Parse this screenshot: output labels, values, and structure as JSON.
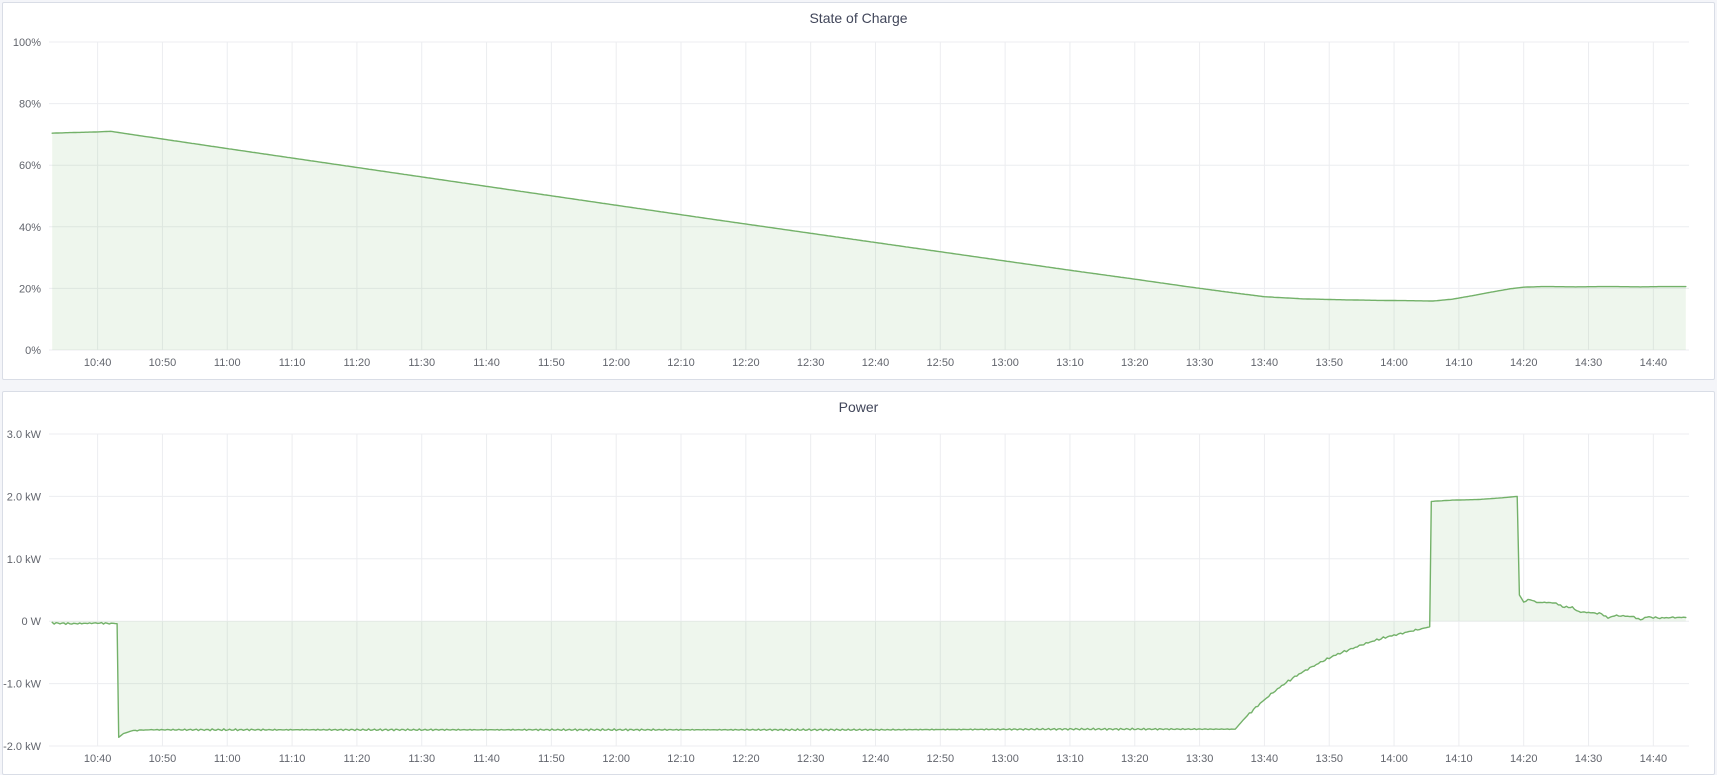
{
  "page": {
    "background": "#f4f5f9"
  },
  "panels": [
    {
      "title": "State of Charge"
    },
    {
      "title": "Power"
    }
  ],
  "colors": {
    "series_line": "#73b169",
    "series_fill": "rgba(115,177,105,0.12)",
    "grid": "#ecedf0",
    "axis_text": "#62656d",
    "panel_title": "#41465a",
    "panel_border": "#d9dde6",
    "panel_bg": "#ffffff",
    "page_bg": "#f4f5f9"
  },
  "chart_data": [
    {
      "type": "area",
      "title": "State of Charge",
      "xlabel": "",
      "ylabel": "",
      "ylim": [
        0,
        100
      ],
      "x_range": [
        "10:32:30",
        "14:45:30"
      ],
      "grid": true,
      "legend": "none",
      "x_ticks": [
        "10:40",
        "10:50",
        "11:00",
        "11:10",
        "11:20",
        "11:30",
        "11:40",
        "11:50",
        "12:00",
        "12:10",
        "12:20",
        "12:30",
        "12:40",
        "12:50",
        "13:00",
        "13:10",
        "13:20",
        "13:30",
        "13:40",
        "13:50",
        "14:00",
        "14:10",
        "14:20",
        "14:30",
        "14:40"
      ],
      "y_ticks": [
        {
          "v": 100,
          "label": "100%"
        },
        {
          "v": 80,
          "label": "80%"
        },
        {
          "v": 60,
          "label": "60%"
        },
        {
          "v": 40,
          "label": "40%"
        },
        {
          "v": 20,
          "label": "20%"
        },
        {
          "v": 0,
          "label": "0%"
        }
      ],
      "series": [
        {
          "name": "State of Charge",
          "unit": "%",
          "points": [
            [
              "10:33",
              70.4
            ],
            [
              "10:36",
              70.6
            ],
            [
              "10:40",
              70.8
            ],
            [
              "10:42",
              71.0
            ],
            [
              "10:50",
              68.5
            ],
            [
              "11:00",
              65.4
            ],
            [
              "11:15",
              60.8
            ],
            [
              "11:30",
              56.2
            ],
            [
              "11:45",
              51.6
            ],
            [
              "12:00",
              47.0
            ],
            [
              "12:15",
              42.4
            ],
            [
              "12:30",
              37.9
            ],
            [
              "12:45",
              33.4
            ],
            [
              "13:00",
              28.9
            ],
            [
              "13:10",
              25.9
            ],
            [
              "13:20",
              23.0
            ],
            [
              "13:28",
              20.6
            ],
            [
              "13:34",
              18.9
            ],
            [
              "13:40",
              17.3
            ],
            [
              "13:46",
              16.6
            ],
            [
              "13:52",
              16.3
            ],
            [
              "13:58",
              16.1
            ],
            [
              "14:03",
              16.0
            ],
            [
              "14:06",
              15.9
            ],
            [
              "14:09",
              16.5
            ],
            [
              "14:12",
              17.6
            ],
            [
              "14:15",
              18.8
            ],
            [
              "14:18",
              19.9
            ],
            [
              "14:20",
              20.4
            ],
            [
              "14:23",
              20.6
            ],
            [
              "14:28",
              20.5
            ],
            [
              "14:33",
              20.6
            ],
            [
              "14:38",
              20.5
            ],
            [
              "14:42",
              20.6
            ],
            [
              "14:45",
              20.6
            ]
          ],
          "noise": []
        }
      ]
    },
    {
      "type": "area",
      "title": "Power",
      "xlabel": "",
      "ylabel": "",
      "ylim": [
        -2,
        3
      ],
      "x_range": [
        "10:32:30",
        "14:45:30"
      ],
      "grid": true,
      "legend": "none",
      "x_ticks": [
        "10:40",
        "10:50",
        "11:00",
        "11:10",
        "11:20",
        "11:30",
        "11:40",
        "11:50",
        "12:00",
        "12:10",
        "12:20",
        "12:30",
        "12:40",
        "12:50",
        "13:00",
        "13:10",
        "13:20",
        "13:30",
        "13:40",
        "13:50",
        "14:00",
        "14:10",
        "14:20",
        "14:30",
        "14:40"
      ],
      "y_ticks": [
        {
          "v": 3,
          "label": "3.0 kW"
        },
        {
          "v": 2,
          "label": "2.0 kW"
        },
        {
          "v": 1,
          "label": "1.0 kW"
        },
        {
          "v": 0,
          "label": "0 W"
        },
        {
          "v": -1,
          "label": "-1.0 kW"
        },
        {
          "v": -2,
          "label": "-2.0 kW"
        }
      ],
      "series": [
        {
          "name": "Power",
          "unit": "kW",
          "points": [
            [
              "10:33",
              -0.03
            ],
            [
              "10:36",
              -0.04
            ],
            [
              "10:40",
              -0.03
            ],
            [
              "10:43",
              -0.04
            ],
            [
              "10:43:15",
              -1.86
            ],
            [
              "10:44",
              -1.8
            ],
            [
              "10:45:30",
              -1.75
            ],
            [
              "10:48",
              -1.74
            ],
            [
              "11:20",
              -1.74
            ],
            [
              "12:00",
              -1.74
            ],
            [
              "12:40",
              -1.74
            ],
            [
              "13:10",
              -1.73
            ],
            [
              "13:35:30",
              -1.73
            ],
            [
              "13:37",
              -1.55
            ],
            [
              "13:39",
              -1.35
            ],
            [
              "13:41",
              -1.17
            ],
            [
              "13:43",
              -1.01
            ],
            [
              "13:45",
              -0.87
            ],
            [
              "13:47",
              -0.75
            ],
            [
              "13:49",
              -0.64
            ],
            [
              "13:51",
              -0.54
            ],
            [
              "13:53",
              -0.46
            ],
            [
              "13:55",
              -0.38
            ],
            [
              "13:57",
              -0.31
            ],
            [
              "13:59",
              -0.25
            ],
            [
              "14:01",
              -0.2
            ],
            [
              "14:03",
              -0.15
            ],
            [
              "14:05:30",
              -0.09
            ],
            [
              "14:05:45",
              1.92
            ],
            [
              "14:09",
              1.94
            ],
            [
              "14:13",
              1.95
            ],
            [
              "14:17",
              1.98
            ],
            [
              "14:19",
              2.0
            ],
            [
              "14:19:20",
              0.42
            ],
            [
              "14:20",
              0.31
            ],
            [
              "14:21",
              0.35
            ],
            [
              "14:22",
              0.3
            ],
            [
              "14:23:30",
              0.3
            ],
            [
              "14:25",
              0.29
            ],
            [
              "14:26",
              0.23
            ],
            [
              "14:27:30",
              0.22
            ],
            [
              "14:28:30",
              0.15
            ],
            [
              "14:30",
              0.14
            ],
            [
              "14:32",
              0.12
            ],
            [
              "14:33",
              0.05
            ],
            [
              "14:34",
              0.09
            ],
            [
              "14:36",
              0.08
            ],
            [
              "14:37",
              0.07
            ],
            [
              "14:38",
              0.02
            ],
            [
              "14:39",
              0.07
            ],
            [
              "14:41",
              0.05
            ],
            [
              "14:43",
              0.06
            ],
            [
              "14:45",
              0.06
            ]
          ],
          "noise": [
            {
              "from": "10:33",
              "to": "10:42:30",
              "amp": 0.02
            },
            {
              "from": "10:46",
              "to": "13:35",
              "amp": 0.016
            },
            {
              "from": "13:37",
              "to": "14:04",
              "amp": 0.02
            },
            {
              "from": "14:20",
              "to": "14:45",
              "amp": 0.015
            }
          ]
        }
      ]
    }
  ]
}
